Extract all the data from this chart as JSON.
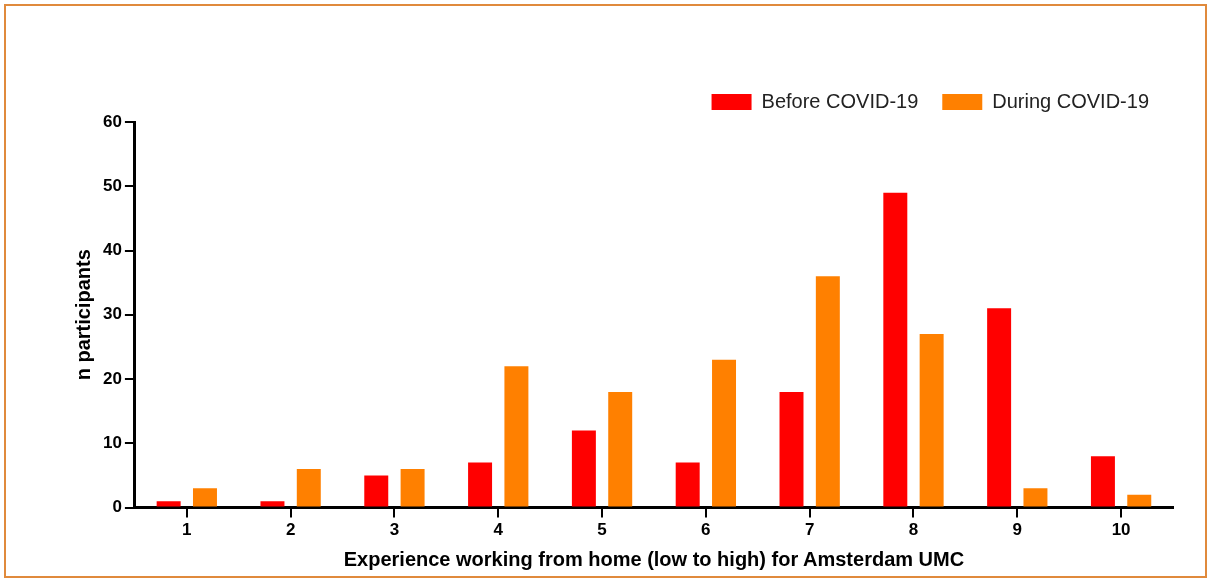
{
  "chart_data": {
    "type": "bar",
    "xlabel": "Experience working from home (low to high) for Amsterdam UMC",
    "ylabel": "n participants",
    "categories": [
      "1",
      "2",
      "3",
      "4",
      "5",
      "6",
      "7",
      "8",
      "9",
      "10"
    ],
    "series": [
      {
        "name": "Before COVID-19",
        "color": "#ff0000",
        "values": [
          1,
          1,
          5,
          7,
          12,
          7,
          18,
          49,
          31,
          8
        ]
      },
      {
        "name": "During COVID-19",
        "color": "#ff8000",
        "values": [
          3,
          6,
          6,
          22,
          18,
          23,
          36,
          27,
          3,
          2
        ]
      }
    ],
    "ylim": [
      0,
      60
    ],
    "yticks": [
      0,
      10,
      20,
      30,
      40,
      50,
      60
    ],
    "grid": false,
    "legend": "top right"
  }
}
